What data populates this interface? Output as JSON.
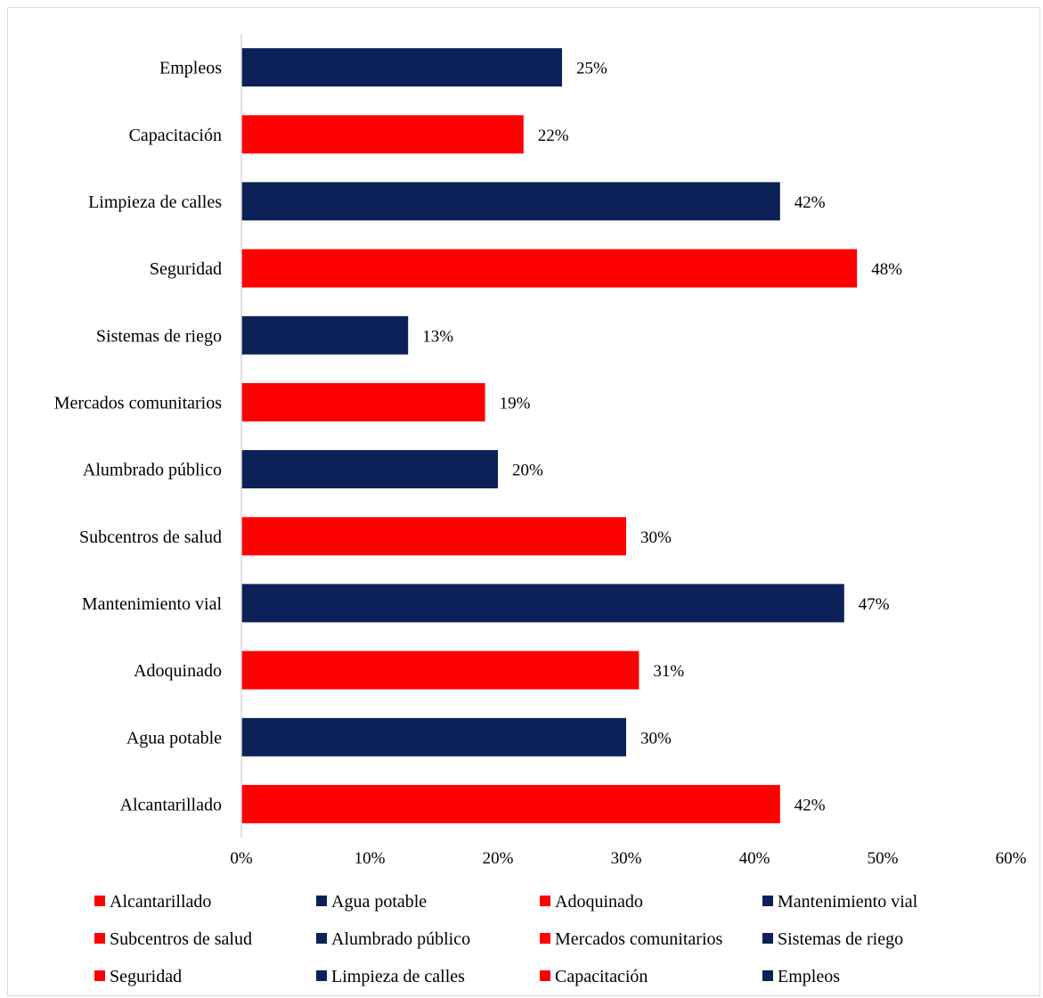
{
  "chart_data": {
    "type": "bar",
    "orientation": "horizontal",
    "categories": [
      "Empleos",
      "Capacitación",
      "Limpieza de calles",
      "Seguridad",
      "Sistemas de riego",
      "Mercados comunitarios",
      "Alumbrado público",
      "Subcentros de salud",
      "Mantenimiento vial",
      "Adoquinado",
      "Agua potable",
      "Alcantarillado"
    ],
    "values": [
      25,
      22,
      42,
      48,
      13,
      19,
      20,
      30,
      47,
      31,
      30,
      42
    ],
    "value_labels": [
      "25%",
      "22%",
      "42%",
      "48%",
      "13%",
      "19%",
      "20%",
      "30%",
      "47%",
      "31%",
      "30%",
      "42%"
    ],
    "bar_colors": [
      "#0c2157",
      "#ff0000",
      "#0c2157",
      "#ff0000",
      "#0c2157",
      "#ff0000",
      "#0c2157",
      "#ff0000",
      "#0c2157",
      "#ff0000",
      "#0c2157",
      "#ff0000"
    ],
    "xlim": [
      0,
      60
    ],
    "xticks": [
      0,
      10,
      20,
      30,
      40,
      50,
      60
    ],
    "xtick_labels": [
      "0%",
      "10%",
      "20%",
      "30%",
      "40%",
      "50%",
      "60%"
    ],
    "grid": false,
    "legend_position": "bottom",
    "legend": [
      {
        "name": "Alcantarillado",
        "color": "#ff0000"
      },
      {
        "name": "Agua potable",
        "color": "#0c2157"
      },
      {
        "name": "Adoquinado",
        "color": "#ff0000"
      },
      {
        "name": "Mantenimiento vial",
        "color": "#0c2157"
      },
      {
        "name": "Subcentros de salud",
        "color": "#ff0000"
      },
      {
        "name": "Alumbrado público",
        "color": "#0c2157"
      },
      {
        "name": "Mercados comunitarios",
        "color": "#ff0000"
      },
      {
        "name": "Sistemas de riego",
        "color": "#0c2157"
      },
      {
        "name": "Seguridad",
        "color": "#ff0000"
      },
      {
        "name": "Limpieza de calles",
        "color": "#0c2157"
      },
      {
        "name": "Capacitación",
        "color": "#ff0000"
      },
      {
        "name": "Empleos",
        "color": "#0c2157"
      }
    ]
  }
}
